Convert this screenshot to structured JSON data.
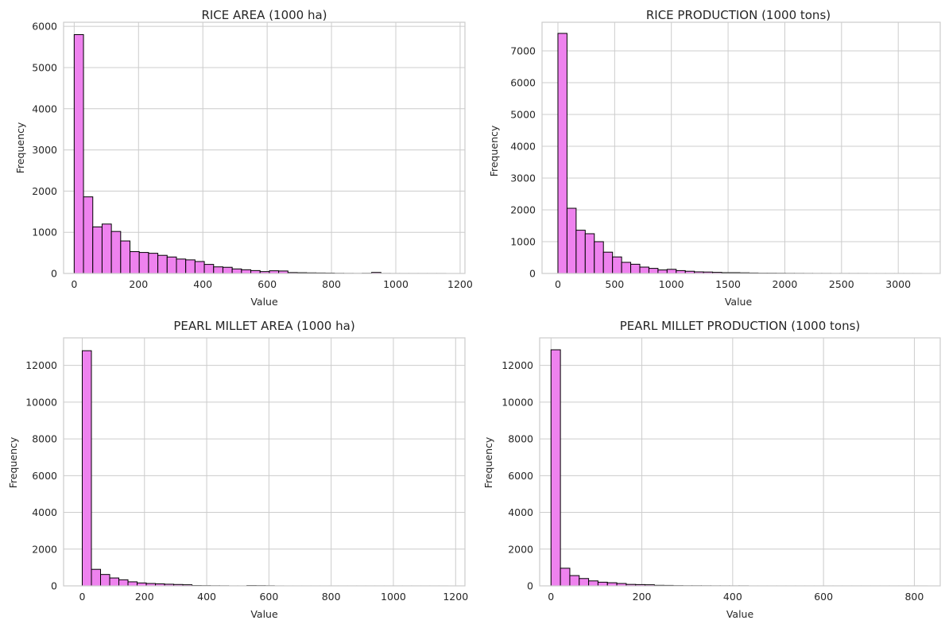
{
  "colors": {
    "bar_fill": "#ee82ee",
    "bar_edge": "#000000",
    "grid": "#cccccc",
    "background": "#ffffff",
    "text": "#262626"
  },
  "chart_data": [
    {
      "type": "bar",
      "title": "RICE AREA (1000 ha)",
      "xlabel": "Value",
      "ylabel": "Frequency",
      "grid": true,
      "xlim": [
        -33,
        1215
      ],
      "ylim": [
        0,
        6100
      ],
      "xticks": [
        0,
        200,
        400,
        600,
        800,
        1000,
        1200
      ],
      "yticks": [
        0,
        1000,
        2000,
        3000,
        4000,
        5000,
        6000
      ],
      "bin_start": 0,
      "bin_width": 28.9,
      "values": [
        5800,
        1860,
        1130,
        1200,
        1020,
        790,
        530,
        510,
        490,
        440,
        400,
        350,
        330,
        290,
        220,
        160,
        150,
        110,
        90,
        70,
        45,
        65,
        60,
        22,
        18,
        14,
        12,
        10,
        5,
        3,
        2,
        5,
        25,
        2,
        1,
        1,
        1,
        1,
        1,
        1
      ]
    },
    {
      "type": "bar",
      "title": "RICE PRODUCTION (1000 tons)",
      "xlabel": "Value",
      "ylabel": "Frequency",
      "grid": true,
      "xlim": [
        -140,
        3370
      ],
      "ylim": [
        0,
        7900
      ],
      "xticks": [
        0,
        500,
        1000,
        1500,
        2000,
        2500,
        3000
      ],
      "yticks": [
        0,
        1000,
        2000,
        3000,
        4000,
        5000,
        6000,
        7000
      ],
      "bin_start": 0,
      "bin_width": 80.2,
      "values": [
        7550,
        2050,
        1360,
        1250,
        1000,
        670,
        520,
        350,
        290,
        200,
        160,
        110,
        130,
        90,
        70,
        50,
        45,
        35,
        25,
        25,
        20,
        15,
        10,
        10,
        8,
        6,
        5,
        4,
        3,
        3,
        2,
        2,
        2,
        2,
        1,
        1,
        1,
        1,
        1,
        1
      ]
    },
    {
      "type": "bar",
      "title": "PEARL MILLET AREA (1000 ha)",
      "xlabel": "Value",
      "ylabel": "Frequency",
      "grid": true,
      "xlim": [
        -60,
        1230
      ],
      "ylim": [
        0,
        13500
      ],
      "xticks": [
        0,
        200,
        400,
        600,
        800,
        1000,
        1200
      ],
      "yticks": [
        0,
        2000,
        4000,
        6000,
        8000,
        10000,
        12000
      ],
      "bin_start": 0,
      "bin_width": 29.4,
      "values": [
        12800,
        900,
        620,
        430,
        330,
        220,
        160,
        130,
        110,
        90,
        75,
        60,
        20,
        15,
        10,
        8,
        2,
        2,
        20,
        15,
        10,
        2,
        1,
        1,
        1,
        1,
        1,
        1,
        1,
        1,
        1,
        1,
        1,
        1,
        1,
        1,
        1,
        1,
        1,
        1
      ]
    },
    {
      "type": "bar",
      "title": "PEARL MILLET PRODUCTION (1000 tons)",
      "xlabel": "Value",
      "ylabel": "Frequency",
      "grid": true,
      "xlim": [
        -25,
        857
      ],
      "ylim": [
        0,
        13500
      ],
      "xticks": [
        0,
        200,
        400,
        600,
        800
      ],
      "yticks": [
        0,
        2000,
        4000,
        6000,
        8000,
        10000,
        12000
      ],
      "bin_start": 0,
      "bin_width": 20.7,
      "values": [
        12850,
        960,
        560,
        400,
        270,
        200,
        170,
        130,
        80,
        70,
        60,
        30,
        25,
        15,
        10,
        10,
        8,
        6,
        5,
        4,
        5,
        1,
        1,
        1,
        1,
        1,
        1,
        1,
        1,
        1,
        1,
        1,
        1,
        1,
        1,
        1,
        1,
        1,
        1,
        1
      ]
    }
  ]
}
